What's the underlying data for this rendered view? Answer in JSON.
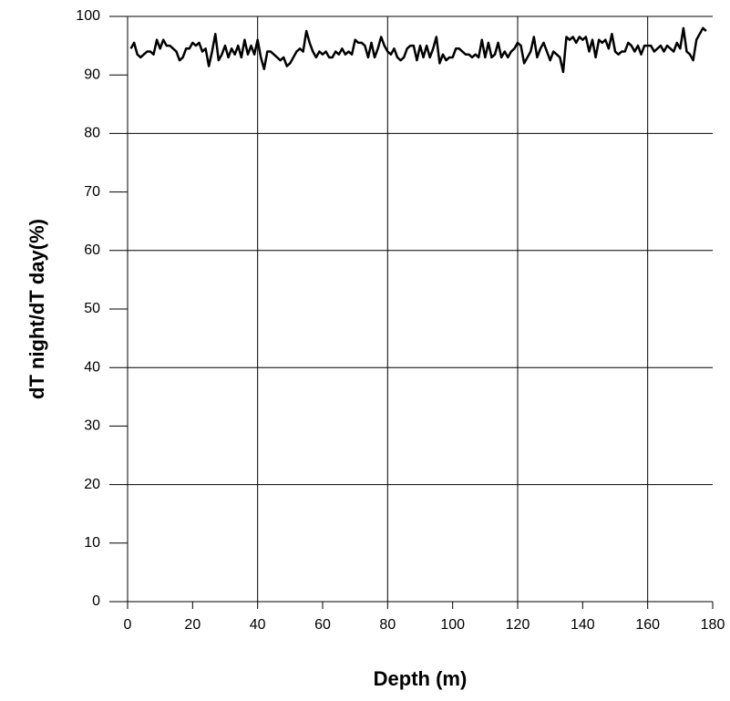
{
  "chart_data": {
    "type": "line",
    "xlabel": "Depth (m)",
    "ylabel": "dT night/dT day(%)",
    "x": [
      1,
      2,
      3,
      4,
      5,
      6,
      7,
      8,
      9,
      10,
      11,
      12,
      13,
      14,
      15,
      16,
      17,
      18,
      19,
      20,
      21,
      22,
      23,
      24,
      25,
      26,
      27,
      28,
      29,
      30,
      31,
      32,
      33,
      34,
      35,
      36,
      37,
      38,
      39,
      40,
      41,
      42,
      43,
      44,
      45,
      46,
      47,
      48,
      49,
      50,
      51,
      52,
      53,
      54,
      55,
      56,
      57,
      58,
      59,
      60,
      61,
      62,
      63,
      64,
      65,
      66,
      67,
      68,
      69,
      70,
      71,
      72,
      73,
      74,
      75,
      76,
      77,
      78,
      79,
      80,
      81,
      82,
      83,
      84,
      85,
      86,
      87,
      88,
      89,
      90,
      91,
      92,
      93,
      94,
      95,
      96,
      97,
      98,
      99,
      100,
      101,
      102,
      103,
      104,
      105,
      106,
      107,
      108,
      109,
      110,
      111,
      112,
      113,
      114,
      115,
      116,
      117,
      118,
      119,
      120,
      121,
      122,
      123,
      124,
      125,
      126,
      127,
      128,
      129,
      130,
      131,
      132,
      133,
      134,
      135,
      136,
      137,
      138,
      139,
      140,
      141,
      142,
      143,
      144,
      145,
      146,
      147,
      148,
      149,
      150,
      151,
      152,
      153,
      154,
      155,
      156,
      157,
      158,
      159,
      160,
      161,
      162,
      163,
      164,
      165,
      166,
      167,
      168,
      169,
      170,
      171,
      172,
      173,
      174,
      175,
      176,
      177,
      178
    ],
    "series": [
      {
        "color": "#000000",
        "values": [
          94.5,
          95.5,
          93.5,
          93,
          93.5,
          94,
          94,
          93.5,
          96,
          94.5,
          96,
          95,
          95,
          94.5,
          94,
          92.5,
          93,
          94.5,
          94.5,
          95.5,
          95,
          95.5,
          94,
          94.5,
          91.5,
          94,
          97,
          92.5,
          93.5,
          95,
          93,
          94.5,
          93.5,
          95,
          93,
          96,
          93.5,
          95,
          93.5,
          96,
          93,
          91,
          94,
          94,
          93.5,
          93,
          92.5,
          93,
          91.5,
          92,
          93,
          94,
          94.5,
          94,
          97.5,
          95.5,
          94,
          93,
          94,
          93.5,
          94,
          93,
          93,
          94,
          93.5,
          94.5,
          93.5,
          94,
          93.5,
          96,
          95.5,
          95.5,
          95,
          93,
          95.5,
          93,
          94.5,
          96.5,
          95,
          94,
          93.5,
          94.5,
          93,
          92.5,
          93,
          94.5,
          95,
          95,
          92.5,
          95,
          93,
          95,
          93,
          94.5,
          96.5,
          92,
          93.5,
          92.5,
          93,
          93,
          94.5,
          94.5,
          94,
          93.5,
          93.5,
          93,
          93.5,
          93,
          96,
          93,
          95.5,
          93,
          93.5,
          95.5,
          93,
          94,
          93,
          94,
          94.5,
          95.5,
          95,
          92,
          93,
          94,
          96.5,
          93,
          94.5,
          95.5,
          94,
          92.5,
          94,
          93.5,
          93,
          90.5,
          96.5,
          96,
          96.5,
          95.5,
          96.5,
          96,
          96.5,
          94,
          96,
          93,
          96,
          95.5,
          96,
          94.5,
          97,
          94,
          93.5,
          94,
          94,
          95.5,
          95,
          94,
          95,
          93.5,
          95,
          95,
          95,
          94,
          94.5,
          95,
          94,
          95,
          94.5,
          94,
          95.5,
          94.5,
          98,
          94,
          93.5,
          92.5,
          96,
          97,
          98,
          97.5
        ]
      }
    ],
    "xlim": [
      0,
      180
    ],
    "xticks": [
      0,
      20,
      40,
      60,
      80,
      100,
      120,
      140,
      160,
      180
    ],
    "ylim": [
      0,
      100
    ],
    "yticks": [
      0,
      10,
      20,
      30,
      40,
      50,
      60,
      70,
      80,
      90,
      100
    ],
    "xgrid": [
      40,
      80,
      120,
      160
    ],
    "ygrid": [
      20,
      40,
      60,
      80,
      100
    ]
  }
}
